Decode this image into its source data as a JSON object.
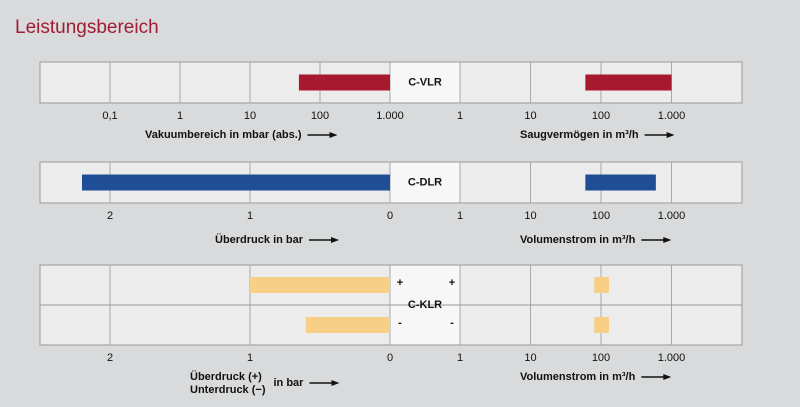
{
  "title": "Leistungsbereich",
  "chart_data": [
    {
      "type": "range",
      "label": "C-VLR",
      "color": "#a6192e",
      "left_axis": {
        "label": "Vakuumbereich in mbar (abs.)",
        "scale": "log",
        "xlim": [
          0.01,
          1000
        ],
        "xticks": [
          {
            "value": 0.1,
            "label": "0,1"
          },
          1,
          10,
          100,
          {
            "value": 1000,
            "label": "1.000"
          }
        ]
      },
      "right_axis": {
        "label": "Saugvermögen in m³/h",
        "scale": "log",
        "xlim": [
          1,
          10000
        ],
        "xticks": [
          1,
          10,
          100,
          {
            "value": 1000,
            "label": "1.000"
          }
        ]
      },
      "rows": [
        {
          "left": [
            50,
            1000
          ],
          "right": [
            60,
            1000
          ]
        }
      ]
    },
    {
      "type": "range",
      "label": "C-DLR",
      "color": "#1f4e96",
      "left_axis": {
        "label": "Überdruck in bar",
        "scale": "linear",
        "xlim": [
          2.5,
          0
        ],
        "xticks": [
          2,
          1,
          0
        ]
      },
      "right_axis": {
        "label": "Volumenstrom in m³/h",
        "scale": "log",
        "xlim": [
          1,
          10000
        ],
        "xticks": [
          1,
          10,
          100,
          {
            "value": 1000,
            "label": "1.000"
          }
        ]
      },
      "rows": [
        {
          "left": [
            2.2,
            0
          ],
          "right": [
            60,
            600
          ]
        }
      ]
    },
    {
      "type": "range",
      "label": "C-KLR",
      "color": "#f7cf86",
      "left_axis": {
        "label_lines": [
          "Überdruck  (+)",
          "Unterdruck (−)"
        ],
        "label": "in bar",
        "scale": "linear",
        "xlim": [
          2.5,
          0
        ],
        "xticks": [
          2,
          1,
          0
        ]
      },
      "right_axis": {
        "label": "Volumenstrom in m³/h",
        "scale": "log",
        "xlim": [
          1,
          10000
        ],
        "xticks": [
          1,
          10,
          100,
          {
            "value": 1000,
            "label": "1.000"
          }
        ]
      },
      "rows": [
        {
          "sign": "+",
          "left": [
            1,
            0
          ],
          "right": [
            80,
            130
          ]
        },
        {
          "sign": "-",
          "left": [
            0.6,
            0
          ],
          "right": [
            80,
            130
          ]
        }
      ]
    }
  ]
}
